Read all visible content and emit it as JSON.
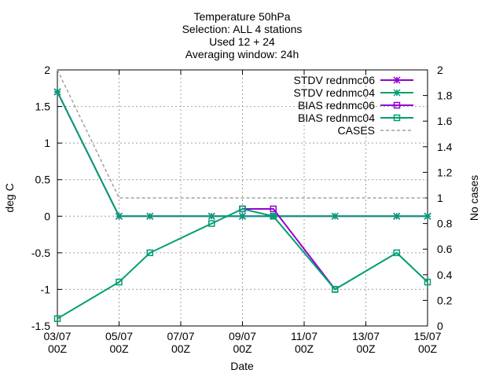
{
  "colors": {
    "stdv_rednmc06": "#9400d3",
    "stdv_rednmc04": "#009e73",
    "bias_rednmc06": "#9400d3",
    "bias_rednmc04": "#009e73",
    "cases": "#a0a0a0",
    "grid": "#a0a0a0",
    "axis": "#000000"
  },
  "chart_data": {
    "type": "line",
    "title_lines": [
      "Temperature 50hPa",
      "Selection: ALL      4 stations",
      "Used 12 + 24",
      "Averaging window: 24h"
    ],
    "xlabel": "Date",
    "ylabel": "deg C",
    "y2label": "No cases",
    "xlim": [
      "2017-07-03T00:00",
      "2017-07-15T00:00"
    ],
    "ylim": [
      -1.5,
      2
    ],
    "y2lim": [
      0,
      2
    ],
    "grid": true,
    "legend_position": "top-right",
    "x_ticks": [
      {
        "x": "2017-07-03T00:00",
        "label": [
          "03/07",
          "00Z"
        ]
      },
      {
        "x": "2017-07-05T00:00",
        "label": [
          "05/07",
          "00Z"
        ]
      },
      {
        "x": "2017-07-07T00:00",
        "label": [
          "07/07",
          "00Z"
        ]
      },
      {
        "x": "2017-07-09T00:00",
        "label": [
          "09/07",
          "00Z"
        ]
      },
      {
        "x": "2017-07-11T00:00",
        "label": [
          "11/07",
          "00Z"
        ]
      },
      {
        "x": "2017-07-13T00:00",
        "label": [
          "13/07",
          "00Z"
        ]
      },
      {
        "x": "2017-07-15T00:00",
        "label": [
          "15/07",
          "00Z"
        ]
      }
    ],
    "y_ticks": [
      -1.5,
      -1,
      -0.5,
      0,
      0.5,
      1,
      1.5,
      2
    ],
    "y_tick_labels": [
      "-1.5",
      "-1",
      "-0.5",
      "0",
      "0.5",
      "1",
      "1.5",
      "2"
    ],
    "y2_ticks": [
      0,
      0.2,
      0.4,
      0.6,
      0.8,
      1,
      1.2,
      1.4,
      1.6,
      1.8,
      2
    ],
    "y2_tick_labels": [
      "0",
      "0.2",
      "0.4",
      "0.6",
      "0.8",
      "1",
      "1.2",
      "1.4",
      "1.6",
      "1.8",
      "2"
    ],
    "series": [
      {
        "name": "STDV rednmc06",
        "color_key": "stdv_rednmc06",
        "axis": "y1",
        "marker": "star",
        "points": [
          [
            "2017-07-03T00:00",
            1.7
          ],
          [
            "2017-07-05T00:00",
            0
          ],
          [
            "2017-07-06T00:00",
            0
          ],
          [
            "2017-07-08T00:00",
            0
          ],
          [
            "2017-07-09T00:00",
            0
          ],
          [
            "2017-07-10T00:00",
            0
          ],
          [
            "2017-07-12T00:00",
            0
          ],
          [
            "2017-07-14T00:00",
            0
          ],
          [
            "2017-07-15T00:00",
            0
          ]
        ]
      },
      {
        "name": "STDV rednmc04",
        "color_key": "stdv_rednmc04",
        "axis": "y1",
        "marker": "star",
        "points": [
          [
            "2017-07-03T00:00",
            1.7
          ],
          [
            "2017-07-05T00:00",
            0
          ],
          [
            "2017-07-06T00:00",
            0
          ],
          [
            "2017-07-08T00:00",
            0
          ],
          [
            "2017-07-09T00:00",
            0
          ],
          [
            "2017-07-10T00:00",
            0
          ],
          [
            "2017-07-12T00:00",
            0
          ],
          [
            "2017-07-14T00:00",
            0
          ],
          [
            "2017-07-15T00:00",
            0
          ]
        ]
      },
      {
        "name": "BIAS rednmc06",
        "color_key": "bias_rednmc06",
        "axis": "y1",
        "marker": "square",
        "points": [
          [
            "2017-07-09T00:00",
            0.1
          ],
          [
            "2017-07-10T00:00",
            0.1
          ],
          [
            "2017-07-12T00:00",
            -1
          ]
        ]
      },
      {
        "name": "BIAS rednmc04",
        "color_key": "bias_rednmc04",
        "axis": "y1",
        "marker": "square",
        "points": [
          [
            "2017-07-03T00:00",
            -1.4
          ],
          [
            "2017-07-05T00:00",
            -0.9
          ],
          [
            "2017-07-06T00:00",
            -0.5
          ],
          [
            "2017-07-08T00:00",
            -0.1
          ],
          [
            "2017-07-09T00:00",
            0.1
          ],
          [
            "2017-07-10T00:00",
            0
          ],
          [
            "2017-07-12T00:00",
            -1
          ],
          [
            "2017-07-14T00:00",
            -0.5
          ],
          [
            "2017-07-15T00:00",
            -0.9
          ]
        ]
      },
      {
        "name": "CASES",
        "color_key": "cases",
        "axis": "y2",
        "marker": "none",
        "dashed": true,
        "points": [
          [
            "2017-07-03T00:00",
            2
          ],
          [
            "2017-07-05T00:00",
            1
          ],
          [
            "2017-07-15T00:00",
            1
          ]
        ]
      }
    ]
  }
}
